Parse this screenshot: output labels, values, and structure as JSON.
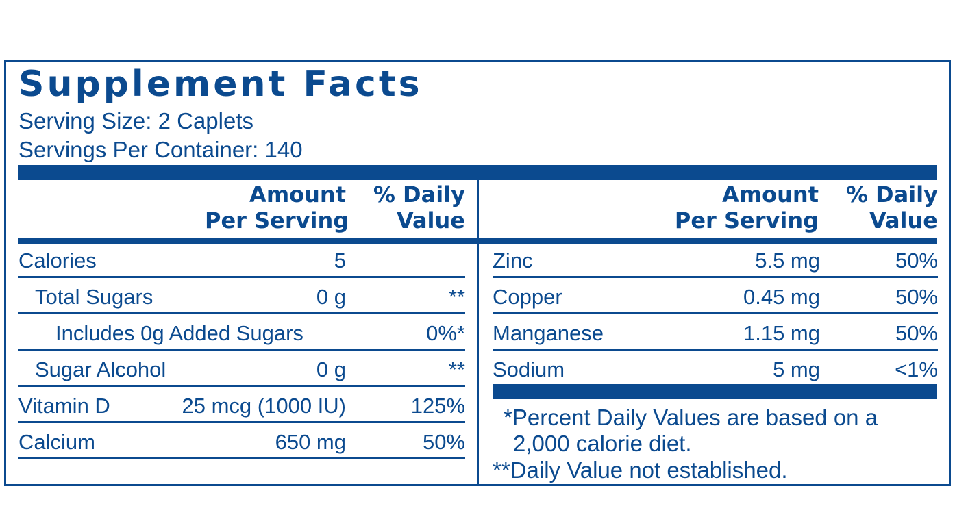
{
  "title": "Supplement Facts",
  "serving_size": "Serving Size: 2 Caplets",
  "servings_per_container": "Servings Per Container: 140",
  "headers": {
    "amount_line1": "Amount",
    "amount_line2": "Per Serving",
    "dv_line1": "% Daily",
    "dv_line2": "Value"
  },
  "left_rows": [
    {
      "name": "Calories",
      "amount": "5",
      "dv": ""
    },
    {
      "name": "Total Sugars",
      "amount": "0 g",
      "dv": "**"
    },
    {
      "name": "Includes 0g Added Sugars",
      "amount": "",
      "dv": "0%*"
    },
    {
      "name": "Sugar Alcohol",
      "amount": "0 g",
      "dv": "**"
    },
    {
      "name": "Vitamin D",
      "amount": "25 mcg (1000 IU)",
      "dv": "125%"
    },
    {
      "name": "Calcium",
      "amount": "650 mg",
      "dv": "50%"
    }
  ],
  "right_rows": [
    {
      "name": "Zinc",
      "amount": "5.5 mg",
      "dv": "50%"
    },
    {
      "name": "Copper",
      "amount": "0.45 mg",
      "dv": "50%"
    },
    {
      "name": "Manganese",
      "amount": "1.15 mg",
      "dv": "50%"
    },
    {
      "name": "Sodium",
      "amount": "5 mg",
      "dv": "<1%"
    }
  ],
  "footnotes": {
    "percent_line1": "*Percent Daily Values are based on a",
    "percent_line2": "2,000 calorie diet.",
    "not_established": "**Daily Value not established."
  },
  "colors": {
    "ink": "#0b4a8f",
    "background": "#ffffff"
  }
}
